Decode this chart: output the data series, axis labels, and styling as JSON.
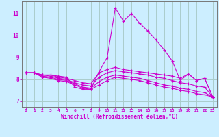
{
  "background_color": "#cceeff",
  "grid_color": "#aacccc",
  "line_color": "#cc00cc",
  "marker_color": "#cc00cc",
  "xlabel": "Windchill (Refroidissement éolien,°C)",
  "xlim": [
    -0.5,
    23.5
  ],
  "ylim": [
    6.75,
    11.55
  ],
  "yticks": [
    7,
    8,
    9,
    10,
    11
  ],
  "xticks": [
    0,
    1,
    2,
    3,
    4,
    5,
    6,
    7,
    8,
    9,
    10,
    11,
    12,
    13,
    14,
    15,
    16,
    17,
    18,
    19,
    20,
    21,
    22,
    23
  ],
  "series": [
    {
      "x": [
        0,
        1,
        2,
        3,
        4,
        5,
        6,
        7,
        8,
        9,
        10,
        11,
        12,
        13,
        14,
        15,
        16,
        17,
        18,
        19,
        20,
        21,
        22,
        23
      ],
      "y": [
        8.3,
        8.3,
        8.2,
        8.2,
        8.15,
        8.1,
        7.65,
        7.55,
        7.55,
        8.35,
        9.0,
        11.25,
        10.65,
        11.0,
        10.55,
        10.2,
        9.8,
        9.35,
        8.85,
        7.95,
        8.25,
        7.95,
        8.05,
        7.2
      ]
    },
    {
      "x": [
        0,
        1,
        2,
        3,
        4,
        5,
        6,
        7,
        8,
        9,
        10,
        11,
        12,
        13,
        14,
        15,
        16,
        17,
        18,
        19,
        20,
        21,
        22,
        23
      ],
      "y": [
        8.3,
        8.3,
        8.2,
        8.2,
        8.1,
        8.05,
        7.95,
        7.85,
        7.8,
        8.3,
        8.45,
        8.55,
        8.45,
        8.4,
        8.35,
        8.3,
        8.25,
        8.2,
        8.15,
        8.05,
        8.25,
        7.95,
        8.05,
        7.2
      ]
    },
    {
      "x": [
        0,
        1,
        2,
        3,
        4,
        5,
        6,
        7,
        8,
        9,
        10,
        11,
        12,
        13,
        14,
        15,
        16,
        17,
        18,
        19,
        20,
        21,
        22,
        23
      ],
      "y": [
        8.3,
        8.3,
        8.2,
        8.15,
        8.05,
        8.0,
        7.85,
        7.75,
        7.7,
        8.1,
        8.3,
        8.4,
        8.35,
        8.3,
        8.25,
        8.2,
        8.1,
        8.05,
        7.95,
        7.85,
        7.8,
        7.7,
        7.65,
        7.2
      ]
    },
    {
      "x": [
        0,
        1,
        2,
        3,
        4,
        5,
        6,
        7,
        8,
        9,
        10,
        11,
        12,
        13,
        14,
        15,
        16,
        17,
        18,
        19,
        20,
        21,
        22,
        23
      ],
      "y": [
        8.3,
        8.3,
        8.15,
        8.1,
        8.0,
        7.95,
        7.8,
        7.65,
        7.6,
        7.9,
        8.1,
        8.2,
        8.15,
        8.1,
        8.05,
        7.95,
        7.85,
        7.75,
        7.7,
        7.6,
        7.55,
        7.45,
        7.4,
        7.2
      ]
    },
    {
      "x": [
        0,
        1,
        2,
        3,
        4,
        5,
        6,
        7,
        8,
        9,
        10,
        11,
        12,
        13,
        14,
        15,
        16,
        17,
        18,
        19,
        20,
        21,
        22,
        23
      ],
      "y": [
        8.3,
        8.3,
        8.1,
        8.05,
        7.95,
        7.9,
        7.75,
        7.6,
        7.55,
        7.75,
        7.95,
        8.1,
        8.05,
        8.0,
        7.95,
        7.85,
        7.75,
        7.65,
        7.6,
        7.5,
        7.45,
        7.35,
        7.3,
        7.2
      ]
    }
  ]
}
